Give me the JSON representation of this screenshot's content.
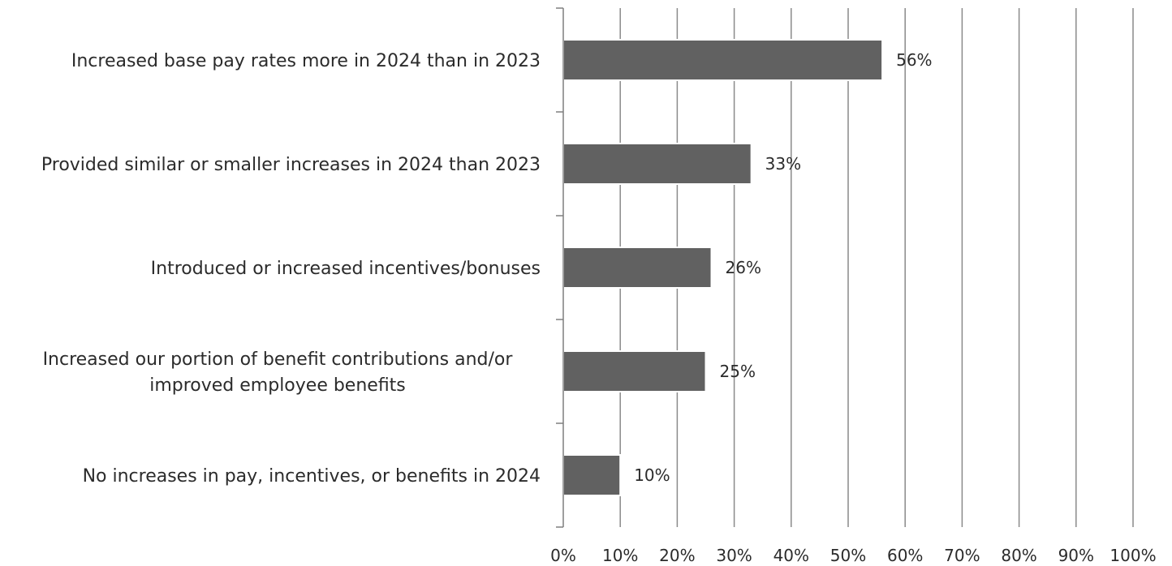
{
  "chart_data": {
    "type": "bar",
    "orientation": "horizontal",
    "categories": [
      [
        "Increased base pay rates more in 2024 than in 2023"
      ],
      [
        "Provided similar or smaller increases in 2024 than 2023"
      ],
      [
        "Introduced or increased incentives/bonuses"
      ],
      [
        "Increased our portion of benefit contributions and/or",
        "improved employee benefits"
      ],
      [
        "No increases in pay, incentives, or benefits in 2024"
      ]
    ],
    "values": [
      56,
      33,
      26,
      25,
      10
    ],
    "data_labels": [
      "56%",
      "33%",
      "26%",
      "25%",
      "10%"
    ],
    "x_ticks": [
      "0%",
      "10%",
      "20%",
      "30%",
      "40%",
      "50%",
      "60%",
      "70%",
      "80%",
      "90%",
      "100%"
    ],
    "xlim": [
      0,
      100
    ],
    "title": "",
    "xlabel": "",
    "ylabel": "",
    "grid": "vertical",
    "legend": "none",
    "colors": {
      "bar": "#616161",
      "bar_outline": "#ffffff",
      "grid": "#8a8a8a",
      "axis": "#7f7f7f",
      "text": "#2b2b2b"
    }
  }
}
